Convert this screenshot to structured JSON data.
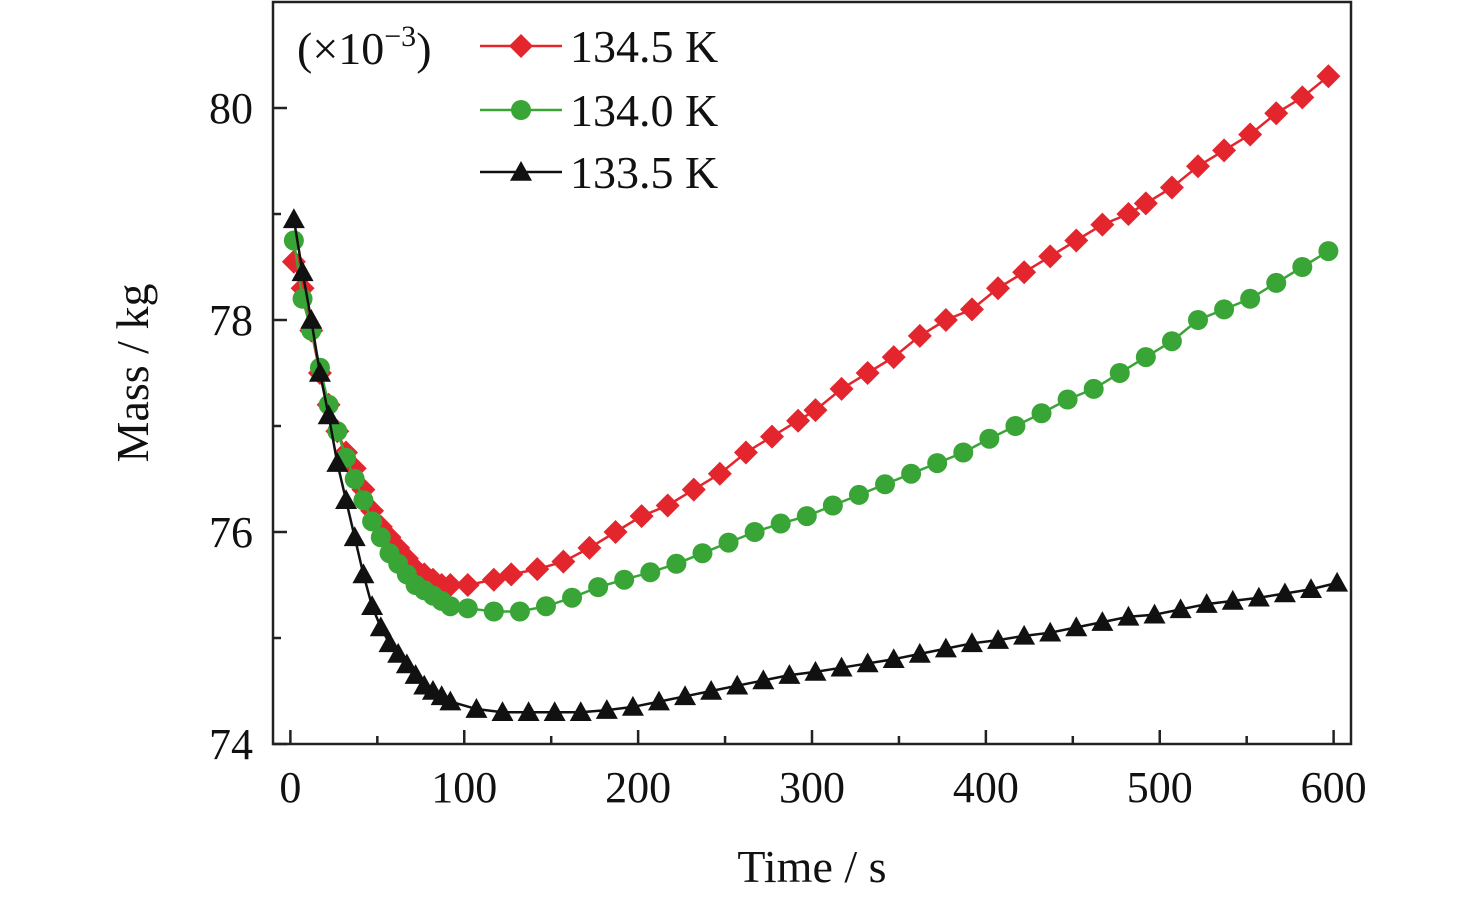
{
  "chart_data": {
    "type": "line",
    "title": "",
    "xlabel": "Time / s",
    "ylabel": "Mass / kg",
    "y_multiplier": "(×10",
    "y_multiplier_exp": "−3",
    "y_multiplier_close": ")",
    "xlim": [
      -10,
      610
    ],
    "ylim": [
      74,
      81
    ],
    "x_ticks": [
      0,
      100,
      200,
      300,
      400,
      500,
      600
    ],
    "x_minor_ticks": [
      50,
      150,
      250,
      350,
      450,
      550
    ],
    "y_ticks": [
      74,
      76,
      78,
      80
    ],
    "y_minor_ticks": [
      75,
      77,
      79
    ],
    "legend_position": "top-left",
    "grid": false,
    "series": [
      {
        "name": "134.5 K",
        "color": "#e3262e",
        "marker": "diamond",
        "x": [
          2,
          7,
          12,
          17,
          22,
          27,
          32,
          37,
          42,
          47,
          52,
          57,
          62,
          67,
          72,
          77,
          82,
          87,
          92,
          102,
          117,
          127,
          142,
          157,
          172,
          187,
          202,
          217,
          232,
          247,
          262,
          277,
          292,
          302,
          317,
          332,
          347,
          362,
          377,
          392,
          407,
          422,
          437,
          452,
          467,
          482,
          492,
          507,
          522,
          537,
          552,
          567,
          582,
          597
        ],
        "y": [
          78.55,
          78.3,
          77.9,
          77.5,
          77.2,
          76.95,
          76.75,
          76.6,
          76.4,
          76.2,
          76.05,
          75.95,
          75.85,
          75.75,
          75.65,
          75.6,
          75.55,
          75.5,
          75.5,
          75.5,
          75.55,
          75.6,
          75.65,
          75.72,
          75.85,
          76.0,
          76.15,
          76.25,
          76.4,
          76.55,
          76.75,
          76.9,
          77.05,
          77.15,
          77.35,
          77.5,
          77.65,
          77.85,
          78.0,
          78.1,
          78.3,
          78.45,
          78.6,
          78.75,
          78.9,
          79.0,
          79.1,
          79.25,
          79.45,
          79.6,
          79.75,
          79.95,
          80.1,
          80.3
        ]
      },
      {
        "name": "134.0 K",
        "color": "#3aa537",
        "marker": "circle",
        "x": [
          2,
          7,
          12,
          17,
          22,
          27,
          32,
          37,
          42,
          47,
          52,
          57,
          62,
          67,
          72,
          77,
          82,
          87,
          92,
          102,
          117,
          132,
          147,
          162,
          177,
          192,
          207,
          222,
          237,
          252,
          267,
          282,
          297,
          312,
          327,
          342,
          357,
          372,
          387,
          402,
          417,
          432,
          447,
          462,
          477,
          492,
          507,
          522,
          537,
          552,
          567,
          582,
          597
        ],
        "y": [
          78.75,
          78.2,
          77.9,
          77.55,
          77.2,
          76.95,
          76.7,
          76.5,
          76.3,
          76.1,
          75.95,
          75.8,
          75.7,
          75.6,
          75.5,
          75.45,
          75.4,
          75.35,
          75.3,
          75.28,
          75.25,
          75.25,
          75.3,
          75.38,
          75.48,
          75.55,
          75.62,
          75.7,
          75.8,
          75.9,
          76.0,
          76.08,
          76.15,
          76.25,
          76.35,
          76.45,
          76.55,
          76.65,
          76.75,
          76.88,
          77.0,
          77.12,
          77.25,
          77.35,
          77.5,
          77.65,
          77.8,
          78.0,
          78.1,
          78.2,
          78.35,
          78.5,
          78.65
        ]
      },
      {
        "name": "133.5 K",
        "color": "#111111",
        "marker": "triangle",
        "x": [
          2,
          7,
          12,
          17,
          22,
          27,
          32,
          37,
          42,
          47,
          52,
          57,
          62,
          67,
          72,
          77,
          82,
          87,
          92,
          107,
          122,
          137,
          152,
          167,
          182,
          197,
          212,
          227,
          242,
          257,
          272,
          287,
          302,
          317,
          332,
          347,
          362,
          377,
          392,
          407,
          422,
          437,
          452,
          467,
          482,
          497,
          512,
          527,
          542,
          557,
          572,
          587,
          602
        ],
        "y": [
          78.95,
          78.45,
          78.0,
          77.5,
          77.1,
          76.65,
          76.3,
          75.95,
          75.6,
          75.3,
          75.1,
          74.95,
          74.85,
          74.75,
          74.65,
          74.55,
          74.5,
          74.45,
          74.4,
          74.33,
          74.3,
          74.3,
          74.3,
          74.3,
          74.32,
          74.35,
          74.4,
          74.45,
          74.5,
          74.55,
          74.6,
          74.65,
          74.68,
          74.72,
          74.76,
          74.8,
          74.85,
          74.9,
          74.95,
          74.98,
          75.02,
          75.05,
          75.1,
          75.15,
          75.2,
          75.22,
          75.27,
          75.32,
          75.35,
          75.38,
          75.42,
          75.46,
          75.52
        ]
      }
    ]
  }
}
